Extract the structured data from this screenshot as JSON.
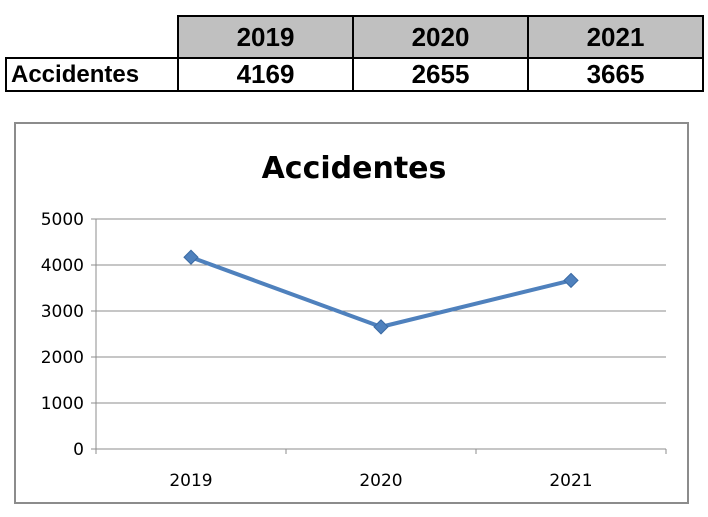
{
  "table": {
    "years": [
      "2019",
      "2020",
      "2021"
    ],
    "row_label": "Accidentes",
    "values": [
      "4169",
      "2655",
      "3665"
    ]
  },
  "chart_data": {
    "type": "line",
    "title": "Accidentes",
    "categories": [
      "2019",
      "2020",
      "2021"
    ],
    "series": [
      {
        "values": [
          4169,
          2655,
          3665
        ]
      }
    ],
    "xlabel": "",
    "ylabel": "",
    "ylim": [
      0,
      5000
    ],
    "yticks": [
      0,
      1000,
      2000,
      3000,
      4000,
      5000
    ],
    "grid": true,
    "legend": "none",
    "line_color": "#4f81bd",
    "marker": "diamond"
  }
}
